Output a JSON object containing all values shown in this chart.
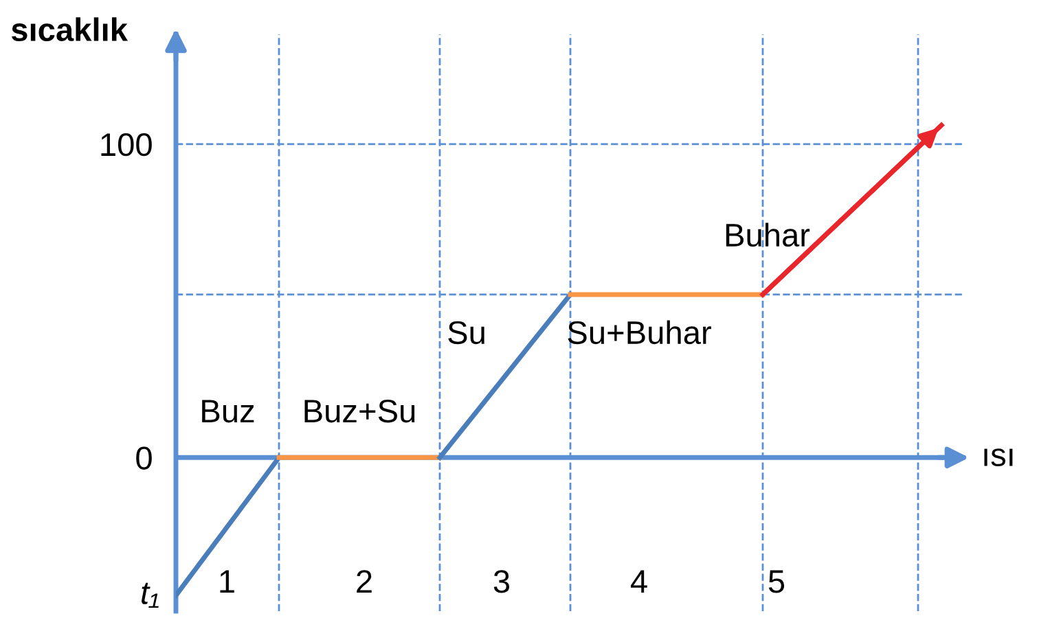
{
  "chart_data": {
    "type": "line",
    "xlabel": "ısı",
    "ylabel": "sıcaklık",
    "series": [
      {
        "color": "#4a7ebb",
        "x": [
          0.63,
          1.38
        ],
        "values": [
          -44,
          0
        ]
      },
      {
        "color": "#f79646",
        "x": [
          1.38,
          2.55
        ],
        "values": [
          0,
          0
        ]
      },
      {
        "color": "#4a7ebb",
        "x": [
          2.55,
          3.5
        ],
        "values": [
          0,
          52
        ]
      },
      {
        "color": "#f79646",
        "x": [
          3.5,
          4.9
        ],
        "values": [
          52,
          52
        ]
      },
      {
        "color": "#e8262b",
        "x": [
          4.9,
          6.2
        ],
        "values": [
          52,
          106
        ]
      }
    ],
    "xlim": [
      0.63,
      6.35
    ],
    "ylim": [
      -49,
      135
    ],
    "xticks": [
      1,
      2,
      3,
      4,
      5
    ],
    "yticks": [
      0,
      100
    ],
    "ref_lines": [
      {
        "axis": "y",
        "value": 0,
        "color": "#5b8fd4",
        "line_style": "solid"
      },
      {
        "axis": "y",
        "value": 52,
        "color": "#5b8fd4",
        "line_style": "dashed"
      },
      {
        "axis": "y",
        "value": 100,
        "color": "#5b8fd4",
        "line_style": "dashed"
      },
      {
        "axis": "x",
        "value": 1.38,
        "color": "#5b8fd4",
        "line_style": "dashed"
      },
      {
        "axis": "x",
        "value": 2.55,
        "color": "#5b8fd4",
        "line_style": "dashed"
      },
      {
        "axis": "x",
        "value": 3.5,
        "color": "#5b8fd4",
        "line_style": "dashed"
      },
      {
        "axis": "x",
        "value": 4.9,
        "color": "#5b8fd4",
        "line_style": "dashed"
      },
      {
        "axis": "x",
        "value": 6.03,
        "color": "#5b8fd4",
        "line_style": "dashed"
      }
    ],
    "annotations": [
      "Buz",
      "Buz+Su",
      "Su",
      "Su+Buhar",
      "Buhar",
      "t₁"
    ],
    "grid": false,
    "legend": false,
    "line_style": "solid",
    "marker": "none"
  }
}
